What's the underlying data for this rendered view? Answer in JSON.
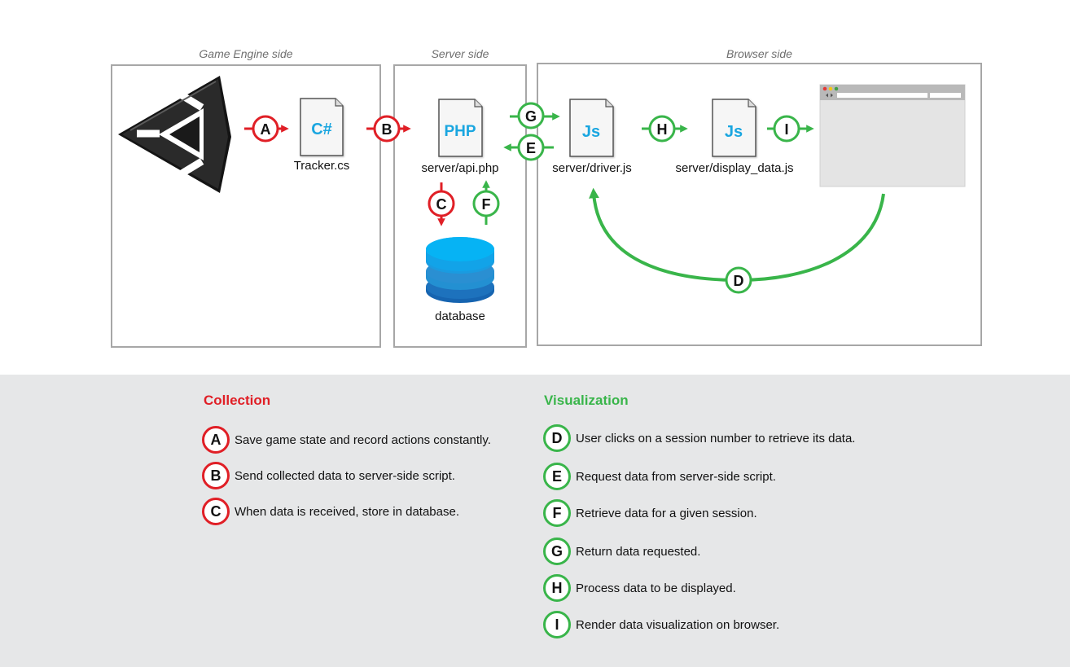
{
  "panels": {
    "game_engine": {
      "label": "Game Engine side"
    },
    "server": {
      "label": "Server side"
    },
    "browser": {
      "label": "Browser side"
    }
  },
  "files": {
    "tracker": {
      "badge": "C#",
      "label": "Tracker.cs"
    },
    "api": {
      "badge": "PHP",
      "label": "server/api.php"
    },
    "driver": {
      "badge": "Js",
      "label": "server/driver.js"
    },
    "display": {
      "badge": "Js",
      "label": "server/display_data.js"
    },
    "database": {
      "label": "database"
    }
  },
  "steps": {
    "A": "A",
    "B": "B",
    "C": "C",
    "D": "D",
    "E": "E",
    "F": "F",
    "G": "G",
    "H": "H",
    "I": "I"
  },
  "legend": {
    "collection": {
      "title": "Collection",
      "items": [
        {
          "letter": "A",
          "text": "Save game state and record actions constantly."
        },
        {
          "letter": "B",
          "text": "Send collected data to server-side script."
        },
        {
          "letter": "C",
          "text": "When data is received, store in database."
        }
      ]
    },
    "visualization": {
      "title": "Visualization",
      "items": [
        {
          "letter": "D",
          "text": "User clicks on a session number to retrieve its data."
        },
        {
          "letter": "E",
          "text": "Request data from server-side script."
        },
        {
          "letter": "F",
          "text": "Retrieve data for a given session."
        },
        {
          "letter": "G",
          "text": "Return data requested."
        },
        {
          "letter": "H",
          "text": "Process data to be displayed."
        },
        {
          "letter": "I",
          "text": "Render data visualization on browser."
        }
      ]
    }
  },
  "colors": {
    "collection": "#e01f26",
    "visualization": "#39b54a",
    "file_text": "#1aa6e0",
    "panel_border": "#a7a7a7",
    "legend_bg": "#e6e7e8"
  },
  "icons": {
    "engine_logo": "unity-logo-icon",
    "browser": "browser-window-icon",
    "database": "database-icon"
  }
}
